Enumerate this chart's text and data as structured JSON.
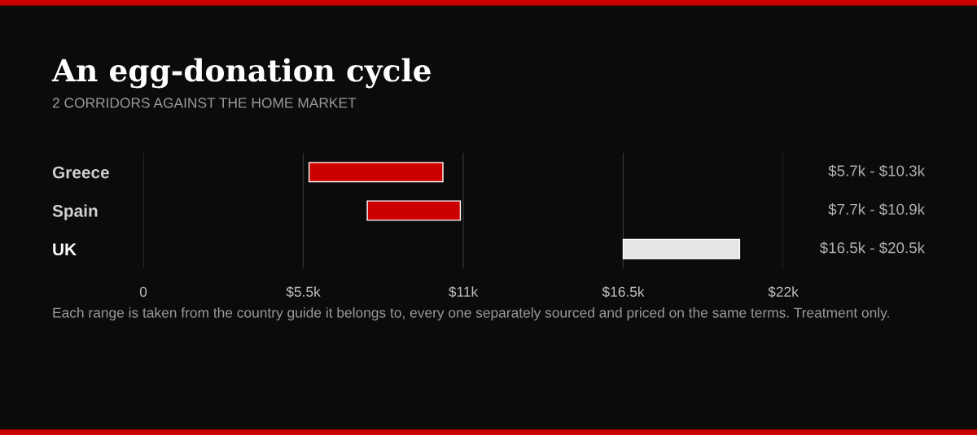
{
  "chart_data": {
    "type": "bar",
    "orientation": "horizontal",
    "title": "An egg-donation cycle",
    "subtitle": "2 CORRIDORS AGAINST THE HOME MARKET",
    "categories": [
      "Greece",
      "Spain",
      "UK"
    ],
    "base": [
      5.7,
      7.7,
      16.5
    ],
    "values": [
      4.6,
      3.2,
      4.0
    ],
    "colors": [
      "#cc0000",
      "#cc0000",
      "#e6e6e6"
    ],
    "xlim": [
      0,
      22
    ],
    "xticks": [
      0,
      {
        "value": 5.5,
        "label": "$5.5k"
      },
      {
        "value": 11,
        "label": "$11k"
      },
      {
        "value": 16.5,
        "label": "$16.5k"
      },
      {
        "value": 22,
        "label": "$22k"
      }
    ],
    "grid": "x",
    "annotations": [
      "$5.7k - $10.3k",
      "$7.7k - $10.9k",
      "$16.5k - $20.5k",
      "Each range is taken from the country guide it belongs to, every one separately sourced and priced on the same terms. Treatment only."
    ]
  }
}
